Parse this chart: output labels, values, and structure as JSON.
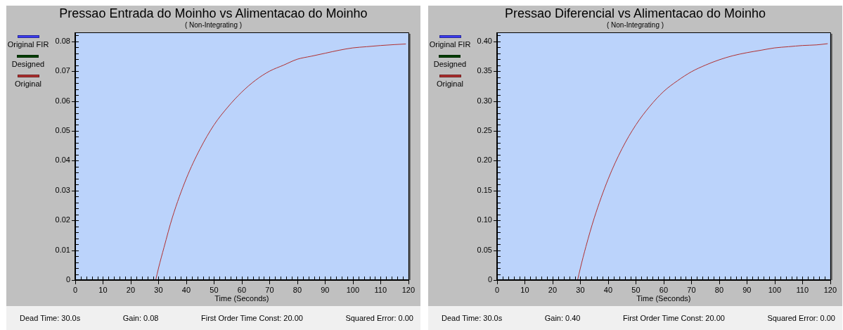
{
  "chart_data": [
    {
      "type": "line",
      "title": "Pressao Entrada do Moinho vs Alimentacao do Moinho",
      "subtitle": "( Non-Integrating )",
      "xlabel": "Time (Seconds)",
      "legend": "left",
      "annotations": [
        "Dead Time: 30.0s",
        "Gain: 0.08",
        "First Order Time Const: 20.00",
        "Squared Error: 0.00"
      ],
      "x": [
        29,
        30,
        32,
        35,
        40,
        45,
        50,
        55,
        60,
        65,
        70,
        75,
        80,
        85,
        90,
        95,
        100,
        105,
        110,
        115,
        119
      ],
      "series": [
        {
          "name": "Original FIR",
          "color": "#3c3cf0",
          "values": [
            null,
            null,
            null,
            null,
            null,
            null,
            null,
            null,
            null,
            null,
            null,
            null,
            null,
            null,
            null,
            null,
            null,
            null,
            null,
            null,
            null
          ]
        },
        {
          "name": "Designed",
          "color": "#004000",
          "values": [
            null,
            null,
            null,
            null,
            null,
            null,
            null,
            null,
            null,
            null,
            null,
            null,
            null,
            null,
            null,
            null,
            null,
            null,
            null,
            null,
            null
          ]
        },
        {
          "name": "Original",
          "color": "#b03030",
          "values": [
            0,
            0.004,
            0.011,
            0.021,
            0.034,
            0.044,
            0.052,
            0.058,
            0.063,
            0.067,
            0.07,
            0.072,
            0.074,
            0.075,
            0.076,
            0.077,
            0.0778,
            0.0782,
            0.0786,
            0.0789,
            0.0791
          ]
        }
      ],
      "xlim": [
        0,
        120
      ],
      "xticks": [
        0,
        {
          "value": 2,
          "label": null
        },
        {
          "value": 4,
          "label": null
        },
        {
          "value": 6,
          "label": null
        },
        {
          "value": 8,
          "label": null
        },
        10,
        {
          "value": 12,
          "label": null
        },
        {
          "value": 14,
          "label": null
        },
        {
          "value": 16,
          "label": null
        },
        {
          "value": 18,
          "label": null
        },
        20,
        {
          "value": 22,
          "label": null
        },
        {
          "value": 24,
          "label": null
        },
        {
          "value": 26,
          "label": null
        },
        {
          "value": 28,
          "label": null
        },
        30,
        {
          "value": 32,
          "label": null
        },
        {
          "value": 34,
          "label": null
        },
        {
          "value": 36,
          "label": null
        },
        {
          "value": 38,
          "label": null
        },
        40,
        {
          "value": 42,
          "label": null
        },
        {
          "value": 44,
          "label": null
        },
        {
          "value": 46,
          "label": null
        },
        {
          "value": 48,
          "label": null
        },
        50,
        {
          "value": 52,
          "label": null
        },
        {
          "value": 54,
          "label": null
        },
        {
          "value": 56,
          "label": null
        },
        {
          "value": 58,
          "label": null
        },
        60,
        {
          "value": 62,
          "label": null
        },
        {
          "value": 64,
          "label": null
        },
        {
          "value": 66,
          "label": null
        },
        {
          "value": 68,
          "label": null
        },
        70,
        {
          "value": 72,
          "label": null
        },
        {
          "value": 74,
          "label": null
        },
        {
          "value": 76,
          "label": null
        },
        {
          "value": 78,
          "label": null
        },
        80,
        {
          "value": 82,
          "label": null
        },
        {
          "value": 84,
          "label": null
        },
        {
          "value": 86,
          "label": null
        },
        {
          "value": 88,
          "label": null
        },
        90,
        {
          "value": 92,
          "label": null
        },
        {
          "value": 94,
          "label": null
        },
        {
          "value": 96,
          "label": null
        },
        {
          "value": 98,
          "label": null
        },
        100,
        {
          "value": 102,
          "label": null
        },
        {
          "value": 104,
          "label": null
        },
        {
          "value": 106,
          "label": null
        },
        {
          "value": 108,
          "label": null
        },
        110,
        {
          "value": 112,
          "label": null
        },
        {
          "value": 114,
          "label": null
        },
        {
          "value": 116,
          "label": null
        },
        {
          "value": 118,
          "label": null
        },
        120
      ],
      "ylim": [
        0,
        0.083
      ],
      "yticks": [
        0,
        {
          "value": 0.002,
          "label": null
        },
        {
          "value": 0.004,
          "label": null
        },
        {
          "value": 0.006,
          "label": null
        },
        {
          "value": 0.008,
          "label": null
        },
        0.01,
        {
          "value": 0.012,
          "label": null
        },
        {
          "value": 0.014,
          "label": null
        },
        {
          "value": 0.016,
          "label": null
        },
        {
          "value": 0.018,
          "label": null
        },
        0.02,
        {
          "value": 0.022,
          "label": null
        },
        {
          "value": 0.024,
          "label": null
        },
        {
          "value": 0.026,
          "label": null
        },
        {
          "value": 0.028,
          "label": null
        },
        0.03,
        {
          "value": 0.032,
          "label": null
        },
        {
          "value": 0.034,
          "label": null
        },
        {
          "value": 0.036,
          "label": null
        },
        {
          "value": 0.038,
          "label": null
        },
        0.04,
        {
          "value": 0.042,
          "label": null
        },
        {
          "value": 0.044,
          "label": null
        },
        {
          "value": 0.046,
          "label": null
        },
        {
          "value": 0.048,
          "label": null
        },
        0.05,
        {
          "value": 0.052,
          "label": null
        },
        {
          "value": 0.054,
          "label": null
        },
        {
          "value": 0.056,
          "label": null
        },
        {
          "value": 0.058,
          "label": null
        },
        0.06,
        {
          "value": 0.062,
          "label": null
        },
        {
          "value": 0.064,
          "label": null
        },
        {
          "value": 0.066,
          "label": null
        },
        {
          "value": 0.068,
          "label": null
        },
        0.07,
        {
          "value": 0.072,
          "label": null
        },
        {
          "value": 0.074,
          "label": null
        },
        {
          "value": 0.076,
          "label": null
        },
        {
          "value": 0.078,
          "label": null
        },
        0.08,
        {
          "value": 0.082,
          "label": null
        }
      ]
    },
    {
      "type": "line",
      "title": "Pressao Diferencial vs Alimentacao do Moinho",
      "subtitle": "( Non-Integrating )",
      "xlabel": "Time (Seconds)",
      "legend": "left",
      "annotations": [
        "Dead Time: 30.0s",
        "Gain: 0.40",
        "First Order Time Const: 20.00",
        "Squared Error: 0.00"
      ],
      "x": [
        29,
        30,
        32,
        35,
        40,
        45,
        50,
        55,
        60,
        65,
        70,
        75,
        80,
        85,
        90,
        95,
        100,
        105,
        110,
        115,
        119
      ],
      "series": [
        {
          "name": "Original FIR",
          "color": "#3c3cf0",
          "values": [
            null,
            null,
            null,
            null,
            null,
            null,
            null,
            null,
            null,
            null,
            null,
            null,
            null,
            null,
            null,
            null,
            null,
            null,
            null,
            null,
            null
          ]
        },
        {
          "name": "Designed",
          "color": "#004000",
          "values": [
            null,
            null,
            null,
            null,
            null,
            null,
            null,
            null,
            null,
            null,
            null,
            null,
            null,
            null,
            null,
            null,
            null,
            null,
            null,
            null,
            null
          ]
        },
        {
          "name": "Original",
          "color": "#b03030",
          "values": [
            0,
            0.02,
            0.056,
            0.104,
            0.169,
            0.22,
            0.26,
            0.291,
            0.316,
            0.334,
            0.349,
            0.36,
            0.369,
            0.376,
            0.381,
            0.385,
            0.389,
            0.391,
            0.393,
            0.394,
            0.396
          ]
        }
      ],
      "xlim": [
        0,
        120
      ],
      "xticks": [
        0,
        {
          "value": 2,
          "label": null
        },
        {
          "value": 4,
          "label": null
        },
        {
          "value": 6,
          "label": null
        },
        {
          "value": 8,
          "label": null
        },
        10,
        {
          "value": 12,
          "label": null
        },
        {
          "value": 14,
          "label": null
        },
        {
          "value": 16,
          "label": null
        },
        {
          "value": 18,
          "label": null
        },
        20,
        {
          "value": 22,
          "label": null
        },
        {
          "value": 24,
          "label": null
        },
        {
          "value": 26,
          "label": null
        },
        {
          "value": 28,
          "label": null
        },
        30,
        {
          "value": 32,
          "label": null
        },
        {
          "value": 34,
          "label": null
        },
        {
          "value": 36,
          "label": null
        },
        {
          "value": 38,
          "label": null
        },
        40,
        {
          "value": 42,
          "label": null
        },
        {
          "value": 44,
          "label": null
        },
        {
          "value": 46,
          "label": null
        },
        {
          "value": 48,
          "label": null
        },
        50,
        {
          "value": 52,
          "label": null
        },
        {
          "value": 54,
          "label": null
        },
        {
          "value": 56,
          "label": null
        },
        {
          "value": 58,
          "label": null
        },
        60,
        {
          "value": 62,
          "label": null
        },
        {
          "value": 64,
          "label": null
        },
        {
          "value": 66,
          "label": null
        },
        {
          "value": 68,
          "label": null
        },
        70,
        {
          "value": 72,
          "label": null
        },
        {
          "value": 74,
          "label": null
        },
        {
          "value": 76,
          "label": null
        },
        {
          "value": 78,
          "label": null
        },
        80,
        {
          "value": 82,
          "label": null
        },
        {
          "value": 84,
          "label": null
        },
        {
          "value": 86,
          "label": null
        },
        {
          "value": 88,
          "label": null
        },
        90,
        {
          "value": 92,
          "label": null
        },
        {
          "value": 94,
          "label": null
        },
        {
          "value": 96,
          "label": null
        },
        {
          "value": 98,
          "label": null
        },
        100,
        {
          "value": 102,
          "label": null
        },
        {
          "value": 104,
          "label": null
        },
        {
          "value": 106,
          "label": null
        },
        {
          "value": 108,
          "label": null
        },
        110,
        {
          "value": 112,
          "label": null
        },
        {
          "value": 114,
          "label": null
        },
        {
          "value": 116,
          "label": null
        },
        {
          "value": 118,
          "label": null
        },
        120
      ],
      "ylim": [
        0,
        0.415
      ],
      "yticks": [
        0,
        {
          "value": 0.01,
          "label": null
        },
        {
          "value": 0.02,
          "label": null
        },
        {
          "value": 0.03,
          "label": null
        },
        {
          "value": 0.04,
          "label": null
        },
        0.05,
        {
          "value": 0.06,
          "label": null
        },
        {
          "value": 0.07,
          "label": null
        },
        {
          "value": 0.08,
          "label": null
        },
        {
          "value": 0.09,
          "label": null
        },
        {
          "value": 0.1,
          "label": "0.10"
        },
        {
          "value": 0.11,
          "label": null
        },
        {
          "value": 0.12,
          "label": null
        },
        {
          "value": 0.13,
          "label": null
        },
        {
          "value": 0.14,
          "label": null
        },
        0.15,
        {
          "value": 0.16,
          "label": null
        },
        {
          "value": 0.17,
          "label": null
        },
        {
          "value": 0.18,
          "label": null
        },
        {
          "value": 0.19,
          "label": null
        },
        {
          "value": 0.2,
          "label": "0.20"
        },
        {
          "value": 0.21,
          "label": null
        },
        {
          "value": 0.22,
          "label": null
        },
        {
          "value": 0.23,
          "label": null
        },
        {
          "value": 0.24,
          "label": null
        },
        0.25,
        {
          "value": 0.26,
          "label": null
        },
        {
          "value": 0.27,
          "label": null
        },
        {
          "value": 0.28,
          "label": null
        },
        {
          "value": 0.29,
          "label": null
        },
        {
          "value": 0.3,
          "label": "0.30"
        },
        {
          "value": 0.31,
          "label": null
        },
        {
          "value": 0.32,
          "label": null
        },
        {
          "value": 0.33,
          "label": null
        },
        {
          "value": 0.34,
          "label": null
        },
        0.35,
        {
          "value": 0.36,
          "label": null
        },
        {
          "value": 0.37,
          "label": null
        },
        {
          "value": 0.38,
          "label": null
        },
        {
          "value": 0.39,
          "label": null
        },
        {
          "value": 0.4,
          "label": "0.40"
        },
        {
          "value": 0.41,
          "label": null
        }
      ]
    }
  ]
}
